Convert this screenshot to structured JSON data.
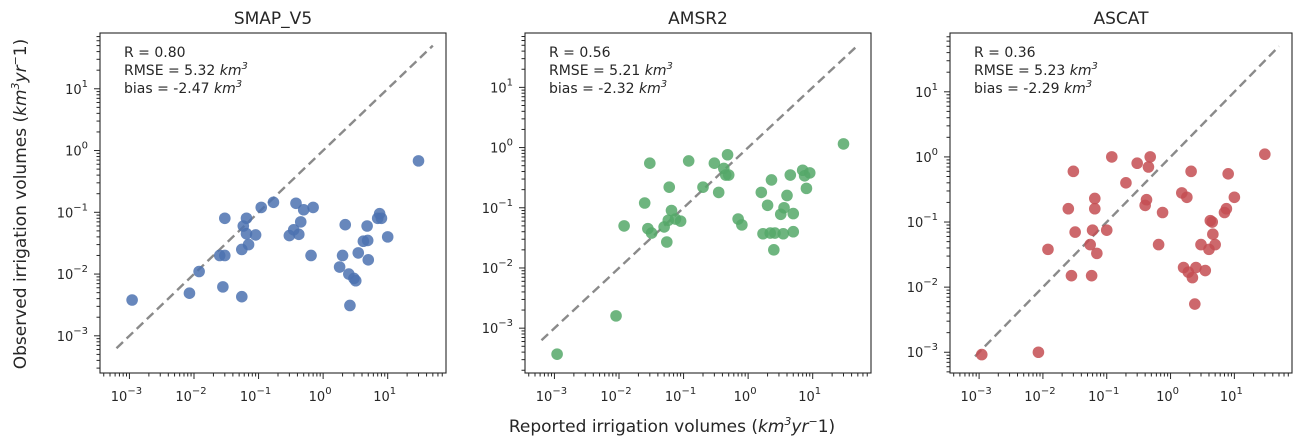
{
  "figure": {
    "xlabel_text": "Reported irrigation volumes (",
    "xlabel_unit": "km",
    "xlabel_sup": "3",
    "xlabel_unit2": "yr",
    "xlabel_sup2": "−",
    "xlabel_end": "1)",
    "ylabel_text": "Observed irrigation volumes (",
    "ylabel_unit": "km",
    "ylabel_sup": "3",
    "ylabel_unit2": "yr",
    "ylabel_sup2": "−",
    "ylabel_end": "1)",
    "tick_base": "10",
    "unit_km": "km",
    "unit_sup": "3"
  },
  "chart_data": [
    {
      "type": "scatter",
      "title": "SMAP_V5",
      "color": "#4c72b0",
      "xscale": "log",
      "yscale": "log",
      "xlim": [
        0.00035,
        80
      ],
      "ylim": [
        0.00025,
        80
      ],
      "xticks": [
        -3,
        -2,
        -1,
        0,
        1
      ],
      "yticks": [
        -3,
        -2,
        -1,
        0,
        1
      ],
      "stats": {
        "r_label": "R = 0.80",
        "rmse_label": "RMSE = 5.32 ",
        "bias_label": "bias = -2.47 "
      },
      "points": [
        [
          0.0011,
          0.0038
        ],
        [
          0.0085,
          0.0049
        ],
        [
          0.012,
          0.011
        ],
        [
          0.025,
          0.02
        ],
        [
          0.028,
          0.0062
        ],
        [
          0.03,
          0.08
        ],
        [
          0.03,
          0.02
        ],
        [
          0.055,
          0.0043
        ],
        [
          0.055,
          0.025
        ],
        [
          0.058,
          0.06
        ],
        [
          0.065,
          0.045
        ],
        [
          0.065,
          0.08
        ],
        [
          0.07,
          0.03
        ],
        [
          0.09,
          0.043
        ],
        [
          0.11,
          0.12
        ],
        [
          0.17,
          0.145
        ],
        [
          0.3,
          0.042
        ],
        [
          0.35,
          0.052
        ],
        [
          0.38,
          0.14
        ],
        [
          0.42,
          0.044
        ],
        [
          0.45,
          0.07
        ],
        [
          0.5,
          0.11
        ],
        [
          0.7,
          0.12
        ],
        [
          0.65,
          0.02
        ],
        [
          1.8,
          0.013
        ],
        [
          2.0,
          0.02
        ],
        [
          2.2,
          0.063
        ],
        [
          2.5,
          0.01
        ],
        [
          2.6,
          0.0031
        ],
        [
          3.0,
          0.0085
        ],
        [
          3.2,
          0.0078
        ],
        [
          3.5,
          0.022
        ],
        [
          4.2,
          0.034
        ],
        [
          4.8,
          0.06
        ],
        [
          4.9,
          0.035
        ],
        [
          5.0,
          0.017
        ],
        [
          7.0,
          0.08
        ],
        [
          7.5,
          0.095
        ],
        [
          8.0,
          0.08
        ],
        [
          10.0,
          0.04
        ],
        [
          30.0,
          0.68
        ]
      ]
    },
    {
      "type": "scatter",
      "title": "AMSR2",
      "color": "#55a868",
      "xscale": "log",
      "yscale": "log",
      "xlim": [
        0.00035,
        80
      ],
      "ylim": [
        0.00018,
        80
      ],
      "xticks": [
        -3,
        -2,
        -1,
        0,
        1
      ],
      "yticks": [
        -3,
        -2,
        -1,
        0,
        1
      ],
      "stats": {
        "r_label": "R = 0.56",
        "rmse_label": "RMSE = 5.21 ",
        "bias_label": "bias = -2.32 "
      },
      "points": [
        [
          0.0011,
          0.00037
        ],
        [
          0.009,
          0.0016
        ],
        [
          0.012,
          0.05
        ],
        [
          0.025,
          0.12
        ],
        [
          0.028,
          0.045
        ],
        [
          0.03,
          0.55
        ],
        [
          0.032,
          0.038
        ],
        [
          0.05,
          0.048
        ],
        [
          0.055,
          0.027
        ],
        [
          0.058,
          0.062
        ],
        [
          0.06,
          0.22
        ],
        [
          0.065,
          0.09
        ],
        [
          0.075,
          0.065
        ],
        [
          0.09,
          0.06
        ],
        [
          0.12,
          0.6
        ],
        [
          0.2,
          0.22
        ],
        [
          0.3,
          0.55
        ],
        [
          0.35,
          0.18
        ],
        [
          0.42,
          0.45
        ],
        [
          0.45,
          0.35
        ],
        [
          0.48,
          0.76
        ],
        [
          0.5,
          0.35
        ],
        [
          0.7,
          0.065
        ],
        [
          0.8,
          0.052
        ],
        [
          1.6,
          0.18
        ],
        [
          1.7,
          0.037
        ],
        [
          2.0,
          0.11
        ],
        [
          2.2,
          0.038
        ],
        [
          2.3,
          0.29
        ],
        [
          2.5,
          0.02
        ],
        [
          2.6,
          0.038
        ],
        [
          3.2,
          0.078
        ],
        [
          3.5,
          0.037
        ],
        [
          3.6,
          0.1
        ],
        [
          4.0,
          0.16
        ],
        [
          4.5,
          0.35
        ],
        [
          5.0,
          0.04
        ],
        [
          5.0,
          0.08
        ],
        [
          7.0,
          0.42
        ],
        [
          7.5,
          0.34
        ],
        [
          8.0,
          0.21
        ],
        [
          9.0,
          0.38
        ],
        [
          30.0,
          1.15
        ]
      ]
    },
    {
      "type": "scatter",
      "title": "ASCAT",
      "color": "#c44e52",
      "xscale": "log",
      "yscale": "log",
      "xlim": [
        0.00035,
        80
      ],
      "ylim": [
        0.00048,
        80
      ],
      "xticks": [
        -3,
        -2,
        -1,
        0,
        1
      ],
      "yticks": [
        -3,
        -2,
        -1,
        0,
        1
      ],
      "stats": {
        "r_label": "R = 0.36",
        "rmse_label": "RMSE = 5.23 ",
        "bias_label": "bias = -2.29 "
      },
      "points": [
        [
          0.0011,
          0.00092
        ],
        [
          0.0085,
          0.001
        ],
        [
          0.012,
          0.038
        ],
        [
          0.025,
          0.16
        ],
        [
          0.028,
          0.015
        ],
        [
          0.03,
          0.6
        ],
        [
          0.032,
          0.07
        ],
        [
          0.055,
          0.045
        ],
        [
          0.058,
          0.015
        ],
        [
          0.06,
          0.075
        ],
        [
          0.065,
          0.16
        ],
        [
          0.065,
          0.23
        ],
        [
          0.07,
          0.033
        ],
        [
          0.1,
          0.075
        ],
        [
          0.12,
          1.0
        ],
        [
          0.2,
          0.4
        ],
        [
          0.3,
          0.8
        ],
        [
          0.4,
          0.18
        ],
        [
          0.42,
          0.22
        ],
        [
          0.45,
          0.7
        ],
        [
          0.48,
          1.0
        ],
        [
          0.65,
          0.045
        ],
        [
          0.75,
          0.14
        ],
        [
          1.5,
          0.28
        ],
        [
          1.6,
          0.02
        ],
        [
          1.8,
          0.24
        ],
        [
          1.9,
          0.017
        ],
        [
          2.1,
          0.6
        ],
        [
          2.2,
          0.014
        ],
        [
          2.4,
          0.0055
        ],
        [
          2.5,
          0.02
        ],
        [
          3.0,
          0.045
        ],
        [
          3.5,
          0.018
        ],
        [
          4.0,
          0.038
        ],
        [
          4.2,
          0.105
        ],
        [
          4.5,
          0.1
        ],
        [
          4.6,
          0.065
        ],
        [
          5.0,
          0.045
        ],
        [
          7.0,
          0.14
        ],
        [
          7.5,
          0.16
        ],
        [
          8.0,
          0.55
        ],
        [
          10.0,
          0.24
        ],
        [
          30.0,
          1.1
        ]
      ]
    }
  ]
}
